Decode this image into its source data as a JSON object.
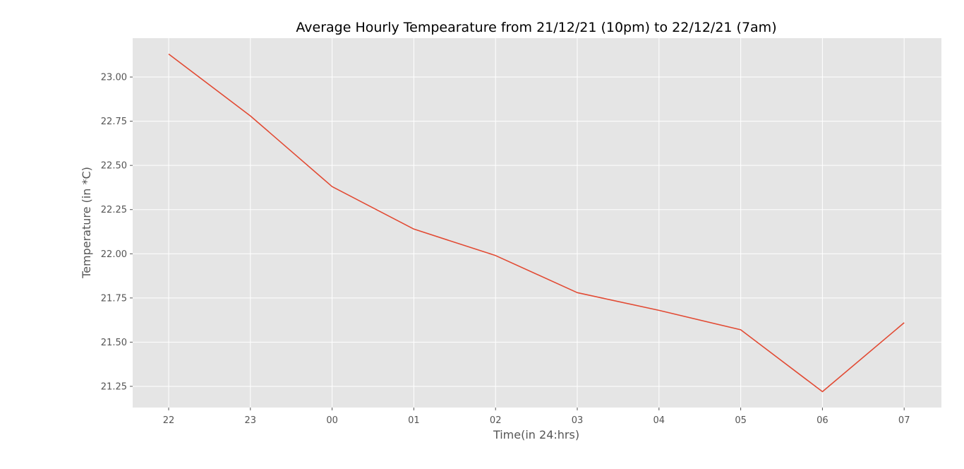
{
  "chart_data": {
    "type": "line",
    "title": "Average Hourly Tempearature from 21/12/21 (10pm) to 22/12/21 (7am)",
    "xlabel": "Time(in 24:hrs)",
    "ylabel": "Temperature (in *C)",
    "categories": [
      "22",
      "23",
      "00",
      "01",
      "02",
      "03",
      "04",
      "05",
      "06",
      "07"
    ],
    "series": [
      {
        "values": [
          23.13,
          22.78,
          22.38,
          22.14,
          21.99,
          21.78,
          21.68,
          21.57,
          21.22,
          21.61
        ]
      }
    ],
    "yticks": [
      "21.25",
      "21.50",
      "21.75",
      "22.00",
      "22.25",
      "22.50",
      "22.75",
      "23.00"
    ],
    "ylim": [
      21.13,
      23.22
    ],
    "grid": true,
    "colors": {
      "line": "#e24a33",
      "plot_background": "#e5e5e5",
      "grid": "#ffffff"
    }
  }
}
